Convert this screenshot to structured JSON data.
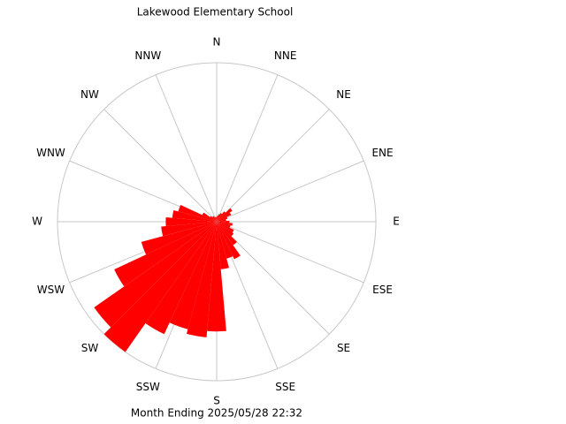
{
  "chart_data": {
    "type": "wind-rose",
    "title": "Lakewood Elementary School",
    "subtitle": "Month Ending 2025/05/28 22:32",
    "color": "#ff0000",
    "x": [
      0,
      10,
      20,
      30,
      40,
      50,
      60,
      70,
      80,
      90,
      100,
      110,
      120,
      130,
      140,
      150,
      160,
      170,
      180,
      190,
      200,
      210,
      220,
      230,
      240,
      250,
      260,
      270,
      280,
      290,
      300,
      310,
      320,
      330,
      340,
      350
    ],
    "values": [
      0.03,
      0.04,
      0.05,
      0.06,
      0.08,
      0.12,
      0.1,
      0.07,
      0.06,
      0.08,
      0.1,
      0.09,
      0.12,
      0.13,
      0.18,
      0.26,
      0.24,
      0.3,
      0.69,
      0.73,
      0.7,
      0.78,
      1.0,
      0.94,
      0.71,
      0.49,
      0.35,
      0.32,
      0.28,
      0.25,
      0.1,
      0.05,
      0.04,
      0.04,
      0.03,
      0.03
    ],
    "xlim": [
      0,
      360
    ],
    "ylim": [
      0,
      1
    ],
    "xticks": [
      {
        "value": 0,
        "label": "N"
      },
      {
        "value": 22.5,
        "label": "NNE"
      },
      {
        "value": 45,
        "label": "NE"
      },
      {
        "value": 67.5,
        "label": "ENE"
      },
      {
        "value": 90,
        "label": "E"
      },
      {
        "value": 112.5,
        "label": "ESE"
      },
      {
        "value": 135,
        "label": "SE"
      },
      {
        "value": 157.5,
        "label": "SSE"
      },
      {
        "value": 180,
        "label": "S"
      },
      {
        "value": 202.5,
        "label": "SSW"
      },
      {
        "value": 225,
        "label": "SW"
      },
      {
        "value": 247.5,
        "label": "WSW"
      },
      {
        "value": 270,
        "label": "W"
      },
      {
        "value": 292.5,
        "label": "WNW"
      },
      {
        "value": 315,
        "label": "NW"
      },
      {
        "value": 337.5,
        "label": "NNW"
      }
    ]
  }
}
